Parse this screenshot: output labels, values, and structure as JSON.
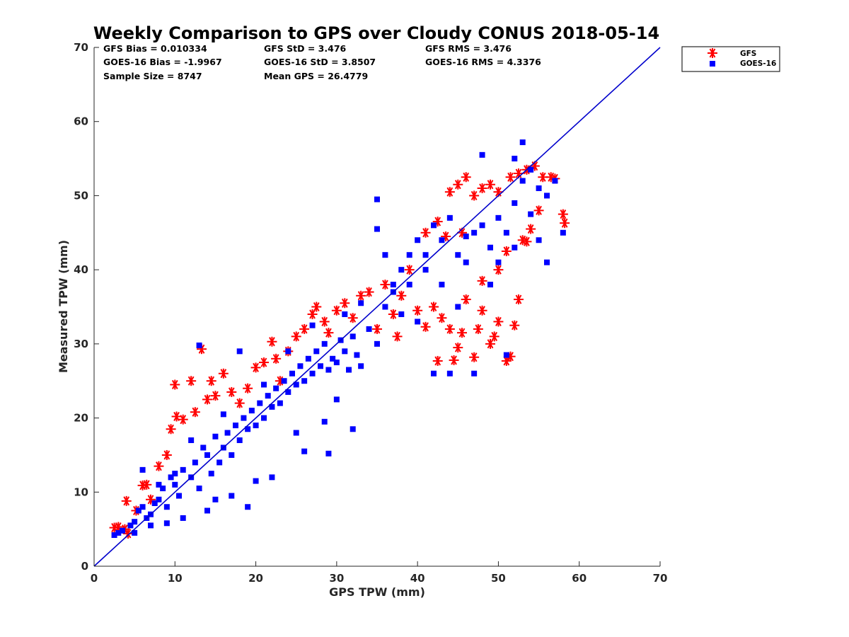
{
  "chart_data": {
    "type": "scatter",
    "title": "Weekly Comparison to GPS over Cloudy CONUS 2018-05-14",
    "xlabel": "GPS TPW (mm)",
    "ylabel": "Measured TPW (mm)",
    "xlim": [
      0,
      70
    ],
    "ylim": [
      0,
      70
    ],
    "xticks": [
      0,
      10,
      20,
      30,
      40,
      50,
      60,
      70
    ],
    "yticks": [
      0,
      10,
      20,
      30,
      40,
      50,
      60,
      70
    ],
    "grid": false,
    "legend_position": "outside-top-right",
    "reference_line": {
      "x": [
        0,
        70
      ],
      "y": [
        0,
        70
      ],
      "color": "#0000cc"
    },
    "stats": [
      [
        "GFS Bias = 0.010334",
        "GFS StD = 3.476",
        "GFS RMS = 3.476"
      ],
      [
        "GOES-16 Bias = -1.9967",
        "GOES-16 StD = 3.8507",
        "GOES-16 RMS = 4.3376"
      ],
      [
        "Sample Size = 8747",
        "Mean GPS = 26.4779",
        ""
      ]
    ],
    "series": [
      {
        "name": "GFS",
        "marker": "asterisk",
        "color": "#ff0000",
        "points": [
          [
            2.5,
            5.2
          ],
          [
            3.0,
            5.3
          ],
          [
            3.8,
            5.0
          ],
          [
            4.2,
            4.4
          ],
          [
            4.0,
            8.8
          ],
          [
            5.2,
            7.5
          ],
          [
            6.0,
            10.9
          ],
          [
            6.5,
            11.0
          ],
          [
            7.0,
            9.0
          ],
          [
            8.0,
            13.5
          ],
          [
            9.0,
            15.0
          ],
          [
            9.5,
            18.5
          ],
          [
            10.0,
            24.5
          ],
          [
            10.2,
            20.2
          ],
          [
            11.0,
            19.8
          ],
          [
            12.0,
            25.0
          ],
          [
            12.5,
            20.8
          ],
          [
            13.3,
            29.3
          ],
          [
            14.0,
            22.5
          ],
          [
            14.5,
            25.0
          ],
          [
            15.0,
            23.0
          ],
          [
            16.0,
            26.0
          ],
          [
            17.0,
            23.5
          ],
          [
            18.0,
            22.0
          ],
          [
            19.0,
            24.0
          ],
          [
            20.0,
            26.8
          ],
          [
            21.0,
            27.5
          ],
          [
            22.0,
            30.3
          ],
          [
            22.5,
            28.0
          ],
          [
            23.0,
            25.0
          ],
          [
            24.0,
            29.0
          ],
          [
            25.0,
            31.0
          ],
          [
            26.0,
            32.0
          ],
          [
            27.0,
            34.0
          ],
          [
            27.5,
            35.0
          ],
          [
            28.5,
            33.0
          ],
          [
            29.0,
            31.5
          ],
          [
            30.0,
            34.5
          ],
          [
            31.0,
            35.5
          ],
          [
            32.0,
            33.5
          ],
          [
            33.0,
            36.5
          ],
          [
            34.0,
            37.0
          ],
          [
            35.0,
            32.0
          ],
          [
            36.0,
            38.0
          ],
          [
            37.0,
            34.0
          ],
          [
            37.5,
            31.0
          ],
          [
            38.0,
            36.5
          ],
          [
            39.0,
            40.0
          ],
          [
            40.0,
            34.5
          ],
          [
            41.0,
            32.3
          ],
          [
            42.0,
            35.0
          ],
          [
            42.5,
            27.7
          ],
          [
            43.0,
            33.5
          ],
          [
            44.0,
            32.0
          ],
          [
            44.5,
            27.8
          ],
          [
            45.0,
            29.5
          ],
          [
            45.5,
            31.5
          ],
          [
            46.0,
            36.0
          ],
          [
            47.0,
            28.2
          ],
          [
            47.5,
            32.0
          ],
          [
            48.0,
            34.5
          ],
          [
            49.0,
            30.0
          ],
          [
            49.5,
            31.0
          ],
          [
            50.0,
            33.0
          ],
          [
            51.0,
            27.7
          ],
          [
            51.5,
            28.3
          ],
          [
            52.0,
            32.5
          ],
          [
            52.5,
            36.0
          ],
          [
            48.0,
            38.5
          ],
          [
            50.0,
            40.0
          ],
          [
            51.0,
            42.5
          ],
          [
            53.0,
            44.0
          ],
          [
            54.0,
            45.5
          ],
          [
            44.0,
            50.5
          ],
          [
            45.0,
            51.5
          ],
          [
            46.0,
            52.5
          ],
          [
            47.0,
            50.0
          ],
          [
            48.0,
            51.0
          ],
          [
            49.0,
            51.5
          ],
          [
            50.0,
            50.5
          ],
          [
            51.5,
            52.5
          ],
          [
            52.5,
            53.0
          ],
          [
            53.5,
            53.5
          ],
          [
            54.5,
            54.0
          ],
          [
            55.5,
            52.5
          ],
          [
            56.5,
            52.5
          ],
          [
            57.0,
            52.3
          ],
          [
            58.0,
            47.5
          ],
          [
            58.2,
            46.3
          ],
          [
            41.0,
            45.0
          ],
          [
            42.5,
            46.5
          ],
          [
            43.5,
            44.5
          ],
          [
            45.5,
            45.0
          ],
          [
            53.5,
            43.8
          ],
          [
            55.0,
            48.0
          ]
        ]
      },
      {
        "name": "GOES-16",
        "marker": "square",
        "color": "#0000ff",
        "points": [
          [
            2.5,
            4.2
          ],
          [
            3.0,
            4.5
          ],
          [
            3.5,
            4.8
          ],
          [
            4.5,
            5.5
          ],
          [
            5.0,
            6.0
          ],
          [
            5.5,
            7.5
          ],
          [
            6.0,
            8.0
          ],
          [
            6.5,
            6.5
          ],
          [
            7.0,
            7.0
          ],
          [
            7.5,
            8.5
          ],
          [
            8.0,
            9.0
          ],
          [
            8.5,
            10.5
          ],
          [
            9.0,
            8.0
          ],
          [
            9.5,
            12.0
          ],
          [
            10.0,
            11.0
          ],
          [
            10.5,
            9.5
          ],
          [
            11.0,
            13.0
          ],
          [
            12.0,
            12.0
          ],
          [
            12.5,
            14.0
          ],
          [
            13.0,
            10.5
          ],
          [
            13.5,
            16.0
          ],
          [
            14.0,
            15.0
          ],
          [
            14.5,
            12.5
          ],
          [
            15.0,
            17.5
          ],
          [
            15.5,
            14.0
          ],
          [
            16.0,
            16.0
          ],
          [
            16.5,
            18.0
          ],
          [
            17.0,
            15.0
          ],
          [
            17.5,
            19.0
          ],
          [
            18.0,
            17.0
          ],
          [
            18.5,
            20.0
          ],
          [
            19.0,
            18.5
          ],
          [
            19.5,
            21.0
          ],
          [
            20.0,
            19.0
          ],
          [
            20.5,
            22.0
          ],
          [
            21.0,
            20.0
          ],
          [
            21.5,
            23.0
          ],
          [
            22.0,
            21.5
          ],
          [
            22.5,
            24.0
          ],
          [
            23.0,
            22.0
          ],
          [
            23.5,
            25.0
          ],
          [
            24.0,
            23.5
          ],
          [
            24.5,
            26.0
          ],
          [
            25.0,
            24.5
          ],
          [
            25.5,
            27.0
          ],
          [
            26.0,
            25.0
          ],
          [
            26.5,
            28.0
          ],
          [
            27.0,
            26.0
          ],
          [
            27.5,
            29.0
          ],
          [
            28.0,
            27.0
          ],
          [
            28.5,
            30.0
          ],
          [
            29.0,
            26.5
          ],
          [
            29.5,
            28.0
          ],
          [
            30.0,
            27.5
          ],
          [
            30.5,
            30.5
          ],
          [
            31.0,
            29.0
          ],
          [
            31.5,
            26.5
          ],
          [
            32.0,
            31.0
          ],
          [
            32.5,
            28.5
          ],
          [
            33.0,
            27.0
          ],
          [
            34.0,
            32.0
          ],
          [
            35.0,
            30.0
          ],
          [
            36.0,
            35.0
          ],
          [
            37.0,
            38.0
          ],
          [
            38.0,
            40.0
          ],
          [
            39.0,
            42.0
          ],
          [
            40.0,
            44.0
          ],
          [
            41.0,
            40.0
          ],
          [
            42.0,
            46.0
          ],
          [
            43.0,
            38.0
          ],
          [
            44.0,
            47.0
          ],
          [
            45.0,
            42.0
          ],
          [
            46.0,
            44.5
          ],
          [
            47.0,
            45.0
          ],
          [
            48.0,
            46.0
          ],
          [
            49.0,
            43.0
          ],
          [
            50.0,
            47.0
          ],
          [
            51.0,
            45.0
          ],
          [
            52.0,
            49.0
          ],
          [
            53.0,
            52.0
          ],
          [
            54.0,
            53.5
          ],
          [
            55.0,
            51.0
          ],
          [
            56.0,
            50.0
          ],
          [
            57.0,
            52.0
          ],
          [
            58.0,
            45.0
          ],
          [
            48.0,
            55.5
          ],
          [
            52.0,
            55.0
          ],
          [
            53.0,
            57.2
          ],
          [
            35.0,
            45.5
          ],
          [
            37.0,
            37.0
          ],
          [
            38.0,
            34.0
          ],
          [
            40.0,
            33.0
          ],
          [
            42.0,
            26.0
          ],
          [
            44.0,
            26.0
          ],
          [
            47.0,
            26.0
          ],
          [
            51.0,
            28.5
          ],
          [
            49.0,
            38.0
          ],
          [
            45.0,
            35.0
          ],
          [
            36.0,
            42.0
          ],
          [
            35.0,
            49.5
          ],
          [
            13.0,
            29.8
          ],
          [
            18.0,
            29.0
          ],
          [
            15.0,
            9.0
          ],
          [
            20.0,
            11.5
          ],
          [
            25.0,
            18.0
          ],
          [
            28.5,
            19.5
          ],
          [
            29.0,
            15.2
          ],
          [
            30.0,
            22.5
          ],
          [
            32.0,
            18.5
          ],
          [
            26.0,
            15.5
          ],
          [
            22.0,
            12.0
          ],
          [
            19.0,
            8.0
          ],
          [
            17.0,
            9.5
          ],
          [
            14.0,
            7.5
          ],
          [
            11.0,
            6.5
          ],
          [
            9.0,
            5.8
          ],
          [
            7.0,
            5.5
          ],
          [
            5.0,
            4.5
          ],
          [
            6.0,
            13.0
          ],
          [
            10.0,
            12.5
          ],
          [
            8.0,
            11.0
          ],
          [
            12.0,
            17.0
          ],
          [
            16.0,
            20.5
          ],
          [
            21.0,
            24.5
          ],
          [
            24.0,
            29.0
          ],
          [
            27.0,
            32.5
          ],
          [
            31.0,
            34.0
          ],
          [
            33.0,
            35.5
          ],
          [
            39.0,
            38.0
          ],
          [
            41.0,
            42.0
          ],
          [
            43.0,
            44.0
          ],
          [
            46.0,
            41.0
          ],
          [
            50.0,
            41.0
          ],
          [
            52.0,
            43.0
          ],
          [
            54.0,
            47.5
          ],
          [
            55.0,
            44.0
          ],
          [
            56.0,
            41.0
          ]
        ]
      }
    ]
  }
}
